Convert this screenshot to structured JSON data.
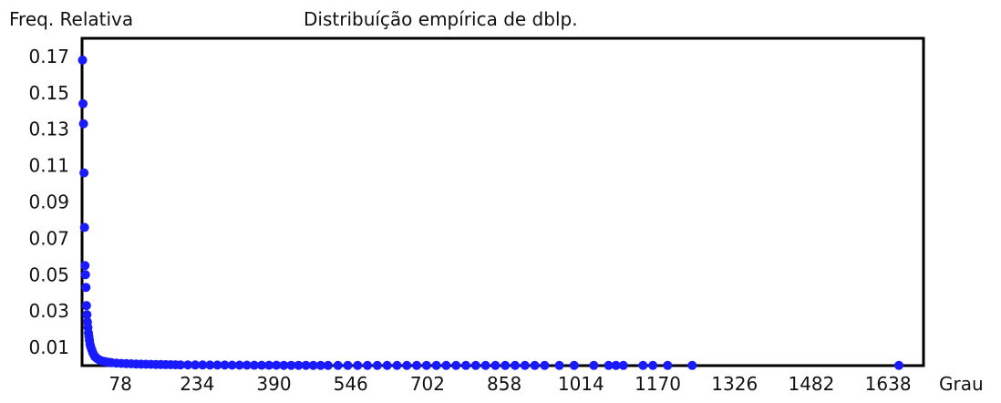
{
  "chart_data": {
    "type": "scatter",
    "title": "Distribuíção empírica de dblp.",
    "xlabel": "Grau",
    "ylabel": "Freq. Relativa",
    "xlim": [
      0,
      1710
    ],
    "ylim": [
      0,
      0.18
    ],
    "x_ticks": [
      "78",
      "234",
      "390",
      "546",
      "702",
      "858",
      "1014",
      "1170",
      "1326",
      "1482",
      "1638"
    ],
    "y_ticks": [
      "0.01",
      "0.03",
      "0.05",
      "0.07",
      "0.09",
      "0.11",
      "0.13",
      "0.15",
      "0.17"
    ],
    "grid": false,
    "point_color": "#1a1aff",
    "x": [
      1,
      2,
      3,
      4,
      5,
      6,
      7,
      8,
      9,
      10,
      11,
      12,
      13,
      14,
      15,
      16,
      17,
      18,
      20,
      22,
      24,
      26,
      28,
      30,
      33,
      36,
      40,
      45,
      50,
      55,
      60,
      70,
      80,
      90,
      100,
      110,
      120,
      130,
      140,
      150,
      160,
      170,
      180,
      190,
      200,
      215,
      230,
      245,
      260,
      275,
      290,
      305,
      320,
      335,
      350,
      365,
      380,
      395,
      410,
      425,
      440,
      455,
      470,
      485,
      500,
      520,
      540,
      560,
      580,
      600,
      620,
      640,
      660,
      680,
      700,
      720,
      740,
      760,
      780,
      800,
      820,
      840,
      860,
      880,
      900,
      920,
      940,
      970,
      1000,
      1040,
      1070,
      1085,
      1100,
      1140,
      1160,
      1190,
      1240,
      1660
    ],
    "y": [
      0.168,
      0.144,
      0.133,
      0.106,
      0.076,
      0.055,
      0.05,
      0.043,
      0.033,
      0.028,
      0.024,
      0.021,
      0.018,
      0.016,
      0.014,
      0.012,
      0.011,
      0.01,
      0.0085,
      0.007,
      0.006,
      0.005,
      0.0045,
      0.004,
      0.0035,
      0.003,
      0.0026,
      0.0023,
      0.002,
      0.0018,
      0.0016,
      0.0014,
      0.0012,
      0.0011,
      0.001,
      0.0009,
      0.0008,
      0.00075,
      0.0007,
      0.00065,
      0.0006,
      0.00055,
      0.0005,
      0.00045,
      0.0004,
      0.0004,
      0.00035,
      0.00035,
      0.0003,
      0.0003,
      0.0003,
      0.00025,
      0.00025,
      0.00025,
      0.0002,
      0.0002,
      0.0002,
      0.0002,
      0.00015,
      0.00015,
      0.00015,
      0.00015,
      0.0001,
      0.0001,
      0.0001,
      0.0001,
      0.0001,
      0.0001,
      0.0001,
      0.0001,
      0.0001,
      0.0001,
      0.0001,
      0.0001,
      0.0001,
      0.0001,
      0.0001,
      0.0001,
      0.0001,
      0.0001,
      0.0001,
      0.0001,
      0.0001,
      0.0001,
      0.0001,
      0.0001,
      0.0001,
      0.0001,
      0.0001,
      0.0001,
      0.0001,
      0.0001,
      0.0001,
      0.0001,
      0.0001,
      0.0001,
      0.0001,
      0.0001
    ]
  }
}
